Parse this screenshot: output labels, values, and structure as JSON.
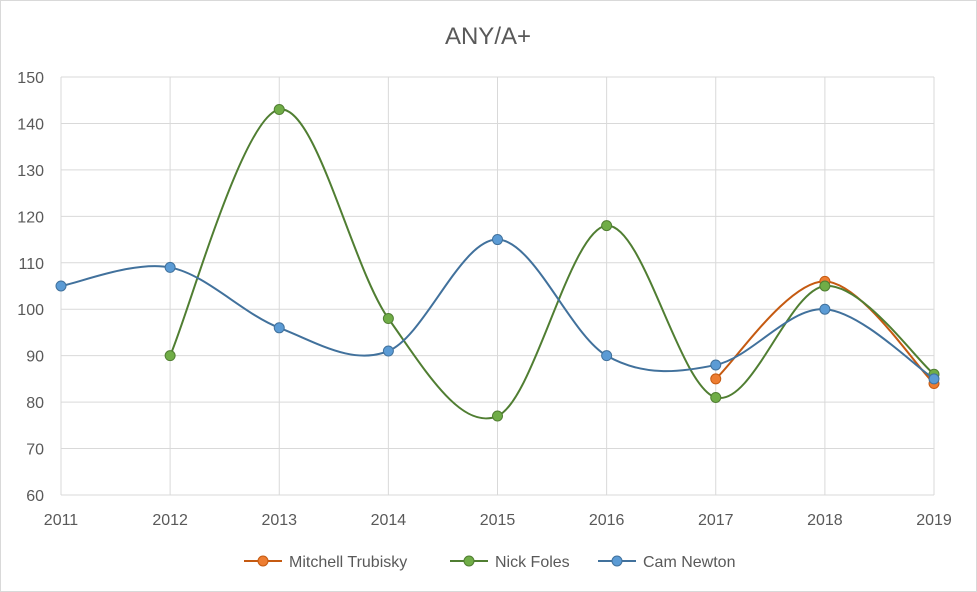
{
  "chart_data": {
    "type": "line",
    "title": "ANY/A+",
    "xlabel": "",
    "ylabel": "",
    "x": [
      2011,
      2012,
      2013,
      2014,
      2015,
      2016,
      2017,
      2018,
      2019
    ],
    "xlim": [
      2011,
      2019
    ],
    "ylim": [
      60,
      150
    ],
    "yticks": [
      60,
      70,
      80,
      90,
      100,
      110,
      120,
      130,
      140,
      150
    ],
    "grid": true,
    "smooth": true,
    "legend_position": "bottom",
    "series": [
      {
        "name": "Mitchell Trubisky",
        "color": "#ed7d31",
        "edge": "#c55a11",
        "values": [
          null,
          null,
          null,
          null,
          null,
          null,
          85,
          106,
          84
        ]
      },
      {
        "name": "Nick Foles",
        "color": "#70ad47",
        "edge": "#507e32",
        "values": [
          null,
          90,
          143,
          98,
          77,
          118,
          81,
          105,
          86
        ]
      },
      {
        "name": "Cam Newton",
        "color": "#5b9bd5",
        "edge": "#41719c",
        "values": [
          105,
          109,
          96,
          91,
          115,
          90,
          88,
          100,
          85
        ]
      }
    ]
  }
}
